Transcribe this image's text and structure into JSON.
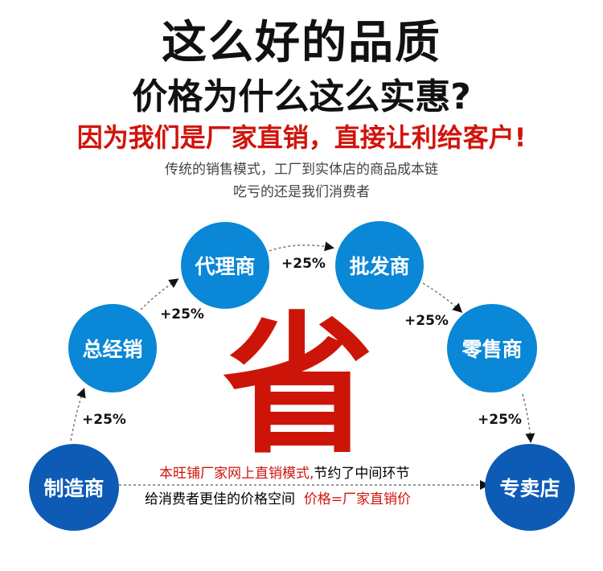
{
  "headline": {
    "line1": "这么好的品质",
    "line2": "价格为什么这么实惠?",
    "line3": "因为我们是厂家直销，直接让利给客户!"
  },
  "subtitle": {
    "line1": "传统的销售模式，工厂到实体店的商品成本链",
    "line2": "吃亏的还是我们消费者"
  },
  "nodes": [
    "制造商",
    "总经销",
    "代理商",
    "批发商",
    "零售商",
    "专卖店"
  ],
  "markup": "+25%",
  "center_char": "省",
  "bottom": {
    "red1": "本旺铺厂家网上直销模式,",
    "black1": "节约了中间环节",
    "black2": "给消费者更佳的价格空间",
    "red2": "价格=厂家直销价"
  },
  "colors": {
    "node_light": "#0a87d6",
    "node_dark": "#0d5bb5",
    "accent_red": "#cc1508"
  }
}
